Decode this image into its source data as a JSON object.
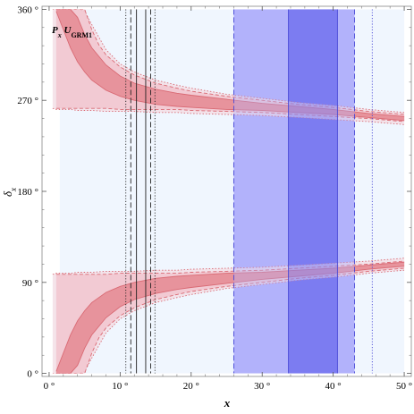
{
  "chart_data": {
    "type": "area",
    "annotation": {
      "prefix": "P",
      "prefix_sub": "x",
      "name": "U",
      "name_sub": "GRM1"
    },
    "xlabel": "x",
    "ylabel": "δ",
    "ylabel_sub": "x",
    "xlim": [
      -1,
      51
    ],
    "ylim": [
      -3,
      363
    ],
    "xticks": [
      0,
      10,
      20,
      30,
      40,
      50
    ],
    "xtick_labels": [
      "0 °",
      "10 °",
      "20 °",
      "30 °",
      "40 °",
      "50 °"
    ],
    "yticks": [
      0,
      90,
      180,
      270,
      360
    ],
    "ytick_labels": [
      "0 °",
      "90 °",
      "180 °",
      "270 °",
      "360 °"
    ],
    "x_bands": [
      {
        "range": [
          1.5,
          50
        ],
        "color": "#f0f6fe",
        "opacity": 1
      },
      {
        "range": [
          26.0,
          43.0
        ],
        "color": "#b3b3fb",
        "opacity": 1
      },
      {
        "range": [
          33.7,
          40.6
        ],
        "color": "#6c6cee",
        "opacity": 1
      }
    ],
    "x_band_edges": [
      {
        "x": 10.8,
        "style": "dotted"
      },
      {
        "x": 11.5,
        "style": "dashed"
      },
      {
        "x": 12.3,
        "style": "solid"
      },
      {
        "x": 13.6,
        "style": "solid"
      },
      {
        "x": 14.3,
        "style": "dashed"
      },
      {
        "x": 14.9,
        "style": "dotted"
      },
      {
        "x": 26.0,
        "style": "dashed"
      },
      {
        "x": 33.7,
        "style": "solid"
      },
      {
        "x": 40.6,
        "style": "solid"
      },
      {
        "x": 43.0,
        "style": "dashed"
      },
      {
        "x": 45.5,
        "style": "dotted"
      }
    ],
    "upper_curve_bands": [
      {
        "level": "3sigma",
        "x": [
          0.5,
          1,
          2,
          3,
          4,
          5,
          6,
          8,
          10,
          12,
          15,
          18,
          20,
          25,
          30,
          35,
          40,
          45,
          50
        ],
        "lower": [
          262,
          261,
          261,
          261,
          260,
          260,
          260,
          259,
          259,
          259,
          258,
          258,
          257,
          256,
          255,
          253,
          251,
          249,
          246
        ],
        "upper": [
          360,
          360,
          360,
          360,
          360,
          358,
          345,
          320,
          306,
          298,
          290,
          285,
          282,
          276,
          272,
          268,
          265,
          261,
          258
        ]
      },
      {
        "level": "2sigma",
        "x": [
          1,
          2,
          3,
          4,
          5,
          6,
          7,
          8,
          10,
          12,
          15,
          18,
          20,
          25,
          30,
          35,
          40,
          45,
          50
        ],
        "lower": [
          262,
          262,
          262,
          262,
          262,
          262,
          262,
          262,
          261,
          261,
          261,
          261,
          260,
          259,
          258,
          256,
          254,
          252,
          249
        ],
        "upper": [
          360,
          360,
          360,
          360,
          360,
          340,
          325,
          315,
          303,
          295,
          287,
          282,
          279,
          274,
          270,
          266,
          263,
          259,
          256
        ]
      },
      {
        "level": "1sigma",
        "x": [
          1,
          2,
          3,
          4,
          5,
          6,
          8,
          10,
          12,
          15,
          18,
          20,
          25,
          30,
          35,
          40,
          45,
          50
        ],
        "lower": [
          358,
          340,
          322,
          308,
          298,
          290,
          280,
          274,
          270,
          266,
          264,
          263,
          261,
          260,
          258,
          256,
          253,
          250
        ],
        "upper": [
          360,
          360,
          360,
          352,
          335,
          322,
          305,
          294,
          287,
          281,
          277,
          275,
          271,
          267,
          264,
          261,
          257,
          254
        ]
      }
    ],
    "lower_curve_bands": [
      {
        "level": "3sigma",
        "x": [
          0.5,
          1,
          2,
          3,
          4,
          5,
          6,
          8,
          10,
          12,
          15,
          18,
          20,
          25,
          30,
          35,
          40,
          45,
          50
        ],
        "lower": [
          0,
          0,
          0,
          0,
          0,
          2,
          15,
          40,
          54,
          62,
          70,
          75,
          78,
          84,
          88,
          92,
          95,
          99,
          102
        ],
        "upper": [
          98,
          99,
          99,
          99,
          100,
          100,
          100,
          101,
          101,
          101,
          102,
          102,
          103,
          104,
          105,
          107,
          109,
          111,
          114
        ]
      },
      {
        "level": "2sigma",
        "x": [
          1,
          2,
          3,
          4,
          5,
          6,
          7,
          8,
          10,
          12,
          15,
          18,
          20,
          25,
          30,
          35,
          40,
          45,
          50
        ],
        "lower": [
          0,
          0,
          0,
          0,
          0,
          20,
          35,
          45,
          57,
          65,
          73,
          78,
          81,
          86,
          90,
          94,
          97,
          101,
          104
        ],
        "upper": [
          98,
          98,
          98,
          98,
          98,
          98,
          98,
          98,
          99,
          99,
          99,
          99,
          100,
          101,
          102,
          104,
          106,
          108,
          111
        ]
      },
      {
        "level": "1sigma",
        "x": [
          1,
          2,
          3,
          4,
          5,
          6,
          8,
          10,
          12,
          15,
          18,
          20,
          25,
          30,
          35,
          40,
          45,
          50
        ],
        "lower": [
          0,
          0,
          0,
          8,
          25,
          38,
          55,
          66,
          73,
          79,
          83,
          85,
          89,
          93,
          96,
          99,
          103,
          106
        ],
        "upper": [
          2,
          20,
          38,
          52,
          62,
          70,
          80,
          86,
          90,
          94,
          96,
          97,
          99,
          100,
          102,
          104,
          107,
          110
        ]
      }
    ],
    "colors": {
      "background_band": "#f0f6fe",
      "sigma3_fill": "#f3dfe6",
      "sigma2_fill": "#f1c6cf",
      "sigma1_fill": "#e58a92",
      "curve_edge": "#d96a74",
      "vline": "#222222",
      "blue_edge": "#4747d6"
    },
    "grid": false
  }
}
